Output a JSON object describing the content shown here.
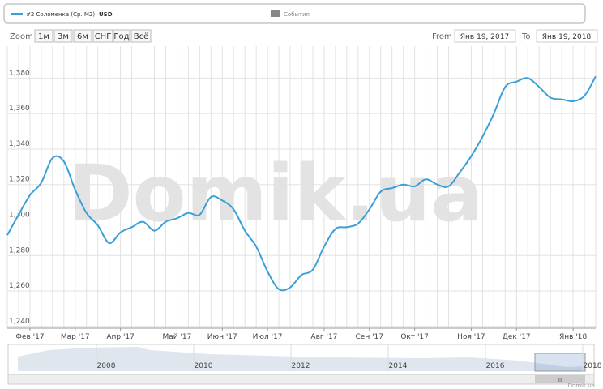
{
  "chart_data": {
    "type": "line",
    "categories": [
      null,
      null,
      "Фев '17",
      null,
      null,
      null,
      "Мар '17",
      null,
      null,
      null,
      "Апр '17",
      null,
      null,
      null,
      null,
      "Май '17",
      null,
      null,
      null,
      "Июн '17",
      null,
      null,
      null,
      "Июл '17",
      null,
      null,
      null,
      null,
      "Авг '17",
      null,
      null,
      null,
      "Сен '17",
      null,
      null,
      null,
      "Окт '17",
      null,
      null,
      null,
      null,
      "Ноя '17",
      null,
      null,
      null,
      "Дек '17",
      null,
      null,
      null,
      null,
      "Янв '18",
      null,
      null
    ],
    "series": [
      {
        "name": "#2 Соломенка (Ср. M2)",
        "unit": "USD",
        "color": "#3aa0d8",
        "values": [
          1291.5,
          1303,
          1314,
          1321,
          1335,
          1333,
          1317,
          1304,
          1297,
          1287,
          1293,
          1296,
          1299,
          1294,
          1299,
          1301,
          1304,
          1303,
          1313,
          1311,
          1306,
          1294,
          1285,
          1271,
          1261,
          1262,
          1269,
          1272,
          1285,
          1295,
          1296,
          1298,
          1306,
          1316,
          1318,
          1320,
          1319,
          1323,
          1320,
          1319,
          1327,
          1336,
          1347,
          1360,
          1375,
          1378,
          1380,
          1375,
          1369,
          1368,
          1367,
          1370,
          1381
        ]
      }
    ],
    "ylim": [
      1239,
      1398
    ],
    "yticks": [
      {
        "value": 1240,
        "label": "1,240"
      },
      {
        "value": 1260,
        "label": "1,260"
      },
      {
        "value": 1280,
        "label": "1,280"
      },
      {
        "value": 1300,
        "label": "1,300"
      },
      {
        "value": 1320,
        "label": "1,320"
      },
      {
        "value": 1340,
        "label": "1,340"
      },
      {
        "value": 1360,
        "label": "1,360"
      },
      {
        "value": 1380,
        "label": "1,380"
      }
    ],
    "grid": true,
    "events_label": "События"
  },
  "toolbar": {
    "zoom_label": "Zoom",
    "buttons": [
      "1м",
      "3м",
      "6м",
      "СНГ",
      "Год",
      "Всё"
    ],
    "from_label": "From",
    "from": "Янв 19, 2017",
    "to_label": "To",
    "to": "Янв 19, 2018"
  },
  "navigator": {
    "years": [
      "2008",
      "2010",
      "2012",
      "2014",
      "2016",
      "2018"
    ],
    "scrollbar_grip": "III"
  },
  "watermark": "Domik.ua",
  "credit": "Domik.ua"
}
